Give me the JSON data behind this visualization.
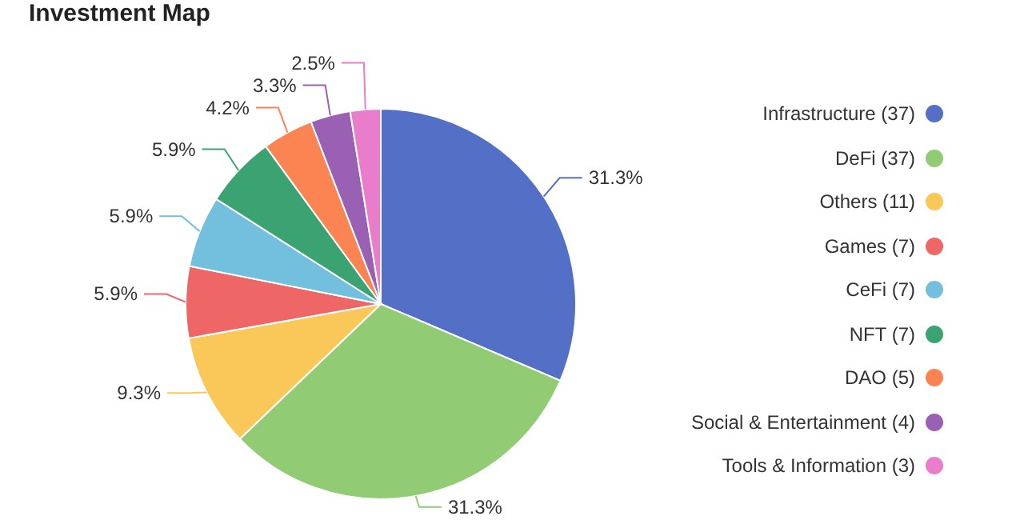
{
  "chart_data": {
    "type": "pie",
    "title": "Investment Map",
    "categories": [
      "Infrastructure (37)",
      "DeFi (37)",
      "Others (11)",
      "Games (7)",
      "CeFi (7)",
      "NFT (7)",
      "DAO (5)",
      "Social & Entertainment (4)",
      "Tools & Information (3)"
    ],
    "values": [
      31.3,
      31.3,
      9.3,
      5.9,
      5.9,
      5.9,
      4.2,
      3.3,
      2.5
    ],
    "value_labels": [
      "31.3%",
      "31.3%",
      "9.3%",
      "5.9%",
      "5.9%",
      "5.9%",
      "4.2%",
      "3.3%",
      "2.5%"
    ],
    "colors": [
      "#5470c6",
      "#91cc75",
      "#fac858",
      "#ee6666",
      "#73c0de",
      "#3ba272",
      "#fc8452",
      "#9a60b4",
      "#ea7ccc"
    ],
    "legend": "right"
  }
}
